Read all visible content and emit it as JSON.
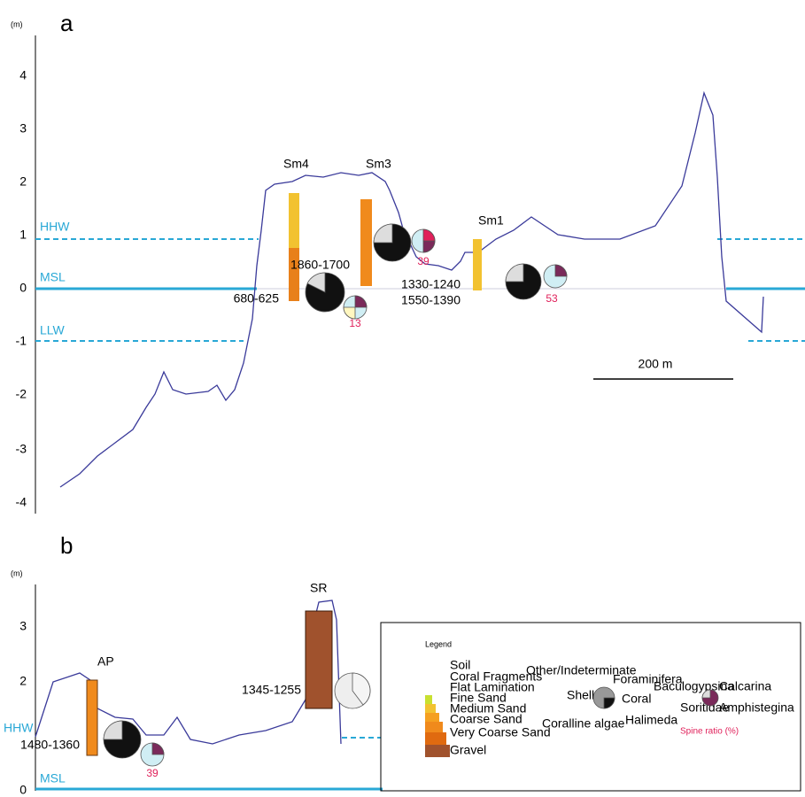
{
  "panel_a": {
    "label": "a",
    "unit": "(m)",
    "yticks": [
      "4",
      "3",
      "2",
      "1",
      "0",
      "-1",
      "-2",
      "-3",
      "-4"
    ],
    "levels": [
      "HHW",
      "MSL",
      "LLW"
    ],
    "sites": [
      "Sm4",
      "Sm3",
      "Sm1"
    ],
    "ages": [
      "680-625",
      "1860-1700",
      "1330-1240",
      "1550-1390"
    ],
    "spine_ratios": [
      "13",
      "39",
      "53"
    ],
    "scale_bar": "200 m"
  },
  "panel_b": {
    "label": "b",
    "unit": "(m)",
    "yticks": [
      "3",
      "2",
      "0"
    ],
    "levels": [
      "HHW",
      "MSL"
    ],
    "sites": [
      "AP",
      "SR"
    ],
    "ages": [
      "1480-1360",
      "1345-1255"
    ],
    "spine_ratios": [
      "39"
    ]
  },
  "legend": {
    "title": "Legend",
    "sediments": [
      "Soil",
      "Coral Fragments",
      "Flat Lamination",
      "Fine Sand",
      "Medium Sand",
      "Coarse Sand",
      "Very Coarse Sand",
      "Gravel"
    ],
    "components": [
      "Other/Indeterminate",
      "Foraminifera",
      "Shell",
      "Coral",
      "Coralline algae",
      "Halimeda"
    ],
    "foraminifera": [
      "Baculogypsina",
      "Calcarina",
      "Soritidae",
      "Amphistegina"
    ],
    "spine_ratio": "Spine ratio (%)"
  }
}
